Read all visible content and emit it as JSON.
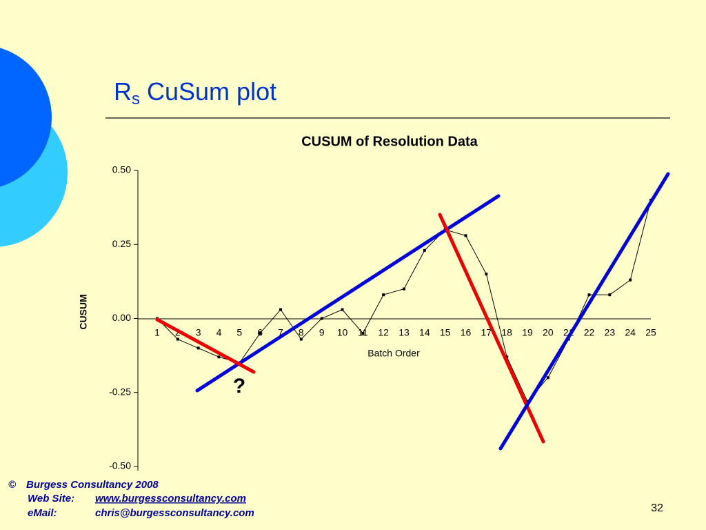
{
  "slide": {
    "title": {
      "main": "R",
      "subscript": "s",
      "rest": "CuSum plot"
    },
    "footer": {
      "copyright": "©",
      "company": "Burgess Consultancy 2008",
      "web_label": "Web Site:",
      "web": "www.burgessconsultancy.com",
      "email_label": "eMail:",
      "email": "chris@burgessconsultancy.com"
    },
    "page_number": "32"
  },
  "chart_data": {
    "type": "line",
    "title": "CUSUM of Resolution Data",
    "x_label": "Batch Order",
    "y_label": "CUSUM",
    "categories": [
      "1",
      "2",
      "3",
      "4",
      "5",
      "6",
      "7",
      "8",
      "9",
      "10",
      "11",
      "12",
      "13",
      "14",
      "15",
      "16",
      "17",
      "18",
      "19",
      "20",
      "21",
      "22",
      "23",
      "24",
      "25"
    ],
    "values": [
      0.0,
      -0.07,
      -0.1,
      -0.13,
      -0.15,
      -0.05,
      0.03,
      -0.07,
      0.0,
      0.03,
      -0.05,
      0.08,
      0.1,
      0.23,
      0.3,
      0.28,
      0.15,
      -0.13,
      -0.28,
      -0.2,
      -0.07,
      0.08,
      0.08,
      0.13,
      0.4
    ],
    "color": "#000000",
    "ylim": [
      -0.5,
      0.5
    ],
    "yticks": [
      {
        "value": 0.5,
        "label": "0.50"
      },
      {
        "value": 0.25,
        "label": "0.25"
      },
      {
        "value": 0,
        "label": "0.00"
      },
      {
        "value": -0.25,
        "label": "-0.25"
      },
      {
        "value": -0.5,
        "label": "-0.50"
      }
    ],
    "annotation": "?"
  }
}
